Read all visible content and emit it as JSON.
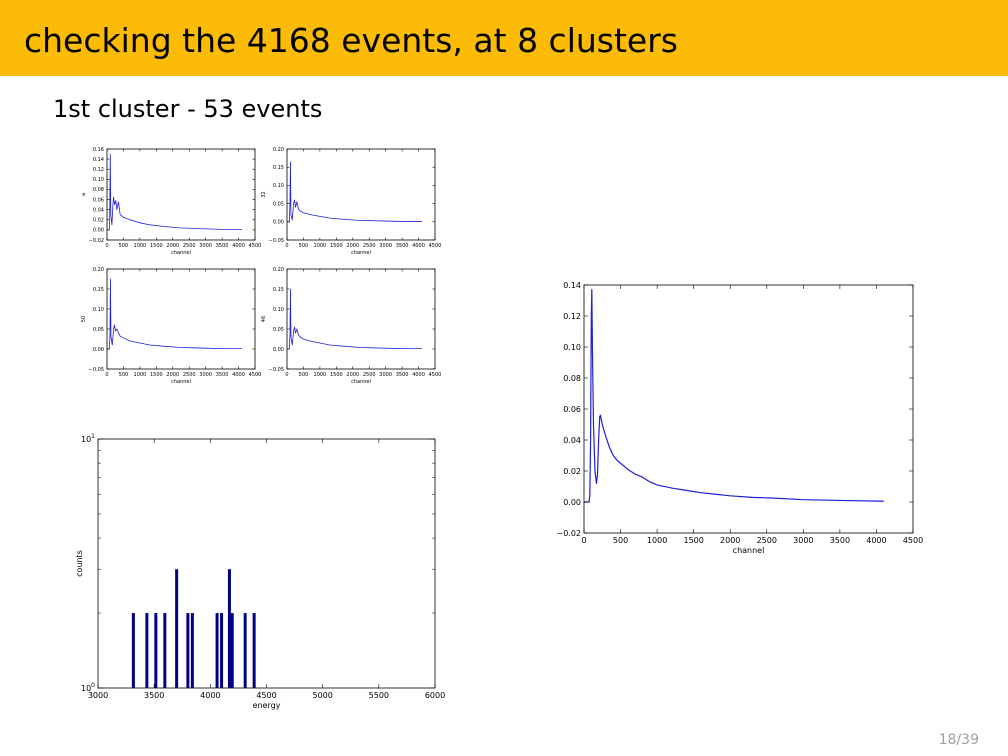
{
  "slide": {
    "title": "checking the 4168 events, at 8 clusters",
    "subtitle": "1st cluster - 53 events",
    "page_number": "18/39"
  },
  "colors": {
    "header_bg": "#fcbb07",
    "trace": "#1f1fd9",
    "histogram_bar": "#000080"
  },
  "chart_data": [
    {
      "id": "small-1",
      "type": "line",
      "xlabel": "channel",
      "ylabel": "a",
      "xlim": [
        0,
        4500
      ],
      "xticks": [
        0,
        500,
        1000,
        1500,
        2000,
        2500,
        3000,
        3500,
        4000,
        4500
      ],
      "ylim": [
        -0.02,
        0.16
      ],
      "yticks": [
        -0.02,
        0.0,
        0.02,
        0.04,
        0.06,
        0.08,
        0.1,
        0.12,
        0.14,
        0.16
      ],
      "tick_decimals": 2,
      "points": [
        [
          0,
          0
        ],
        [
          70,
          0
        ],
        [
          80,
          0.01
        ],
        [
          100,
          0.15
        ],
        [
          115,
          0.03
        ],
        [
          150,
          0.01
        ],
        [
          180,
          0.05
        ],
        [
          200,
          0.065
        ],
        [
          230,
          0.05
        ],
        [
          270,
          0.058
        ],
        [
          300,
          0.04
        ],
        [
          350,
          0.055
        ],
        [
          400,
          0.03
        ],
        [
          500,
          0.025
        ],
        [
          700,
          0.02
        ],
        [
          1000,
          0.014
        ],
        [
          1300,
          0.01
        ],
        [
          1700,
          0.007
        ],
        [
          2200,
          0.004
        ],
        [
          2600,
          0.003
        ],
        [
          3000,
          0.002
        ],
        [
          3500,
          0.001
        ],
        [
          4100,
          0.001
        ]
      ]
    },
    {
      "id": "small-2",
      "type": "line",
      "xlabel": "channel",
      "ylabel": "32",
      "xlim": [
        0,
        4500
      ],
      "xticks": [
        0,
        500,
        1000,
        1500,
        2000,
        2500,
        3000,
        3500,
        4000,
        4500
      ],
      "ylim": [
        -0.05,
        0.2
      ],
      "yticks": [
        -0.05,
        0.0,
        0.05,
        0.1,
        0.15,
        0.2
      ],
      "tick_decimals": 2,
      "points": [
        [
          0,
          0
        ],
        [
          70,
          0
        ],
        [
          90,
          0.05
        ],
        [
          105,
          0.165
        ],
        [
          120,
          0.02
        ],
        [
          160,
          0.005
        ],
        [
          200,
          0.05
        ],
        [
          230,
          0.06
        ],
        [
          260,
          0.04
        ],
        [
          300,
          0.055
        ],
        [
          350,
          0.035
        ],
        [
          400,
          0.03
        ],
        [
          500,
          0.025
        ],
        [
          700,
          0.02
        ],
        [
          1000,
          0.015
        ],
        [
          1300,
          0.01
        ],
        [
          1700,
          0.007
        ],
        [
          2200,
          0.004
        ],
        [
          2600,
          0.003
        ],
        [
          3000,
          0.002
        ],
        [
          3500,
          0.001
        ],
        [
          4100,
          0.001
        ]
      ]
    },
    {
      "id": "small-3",
      "type": "line",
      "xlabel": "channel",
      "ylabel": "50",
      "xlim": [
        0,
        4500
      ],
      "xticks": [
        0,
        500,
        1000,
        1500,
        2000,
        2500,
        3000,
        3500,
        4000,
        4500
      ],
      "ylim": [
        -0.05,
        0.2
      ],
      "yticks": [
        -0.05,
        0.0,
        0.05,
        0.1,
        0.15,
        0.2
      ],
      "tick_decimals": 2,
      "points": [
        [
          0,
          0
        ],
        [
          70,
          0
        ],
        [
          90,
          0.03
        ],
        [
          105,
          0.175
        ],
        [
          120,
          0.03
        ],
        [
          160,
          0.01
        ],
        [
          200,
          0.05
        ],
        [
          230,
          0.06
        ],
        [
          260,
          0.045
        ],
        [
          300,
          0.05
        ],
        [
          350,
          0.04
        ],
        [
          400,
          0.032
        ],
        [
          500,
          0.028
        ],
        [
          700,
          0.02
        ],
        [
          1000,
          0.015
        ],
        [
          1300,
          0.01
        ],
        [
          1700,
          0.007
        ],
        [
          2200,
          0.004
        ],
        [
          2600,
          0.003
        ],
        [
          3000,
          0.002
        ],
        [
          3500,
          0.001
        ],
        [
          4100,
          0.001
        ]
      ]
    },
    {
      "id": "small-4",
      "type": "line",
      "xlabel": "channel",
      "ylabel": "46",
      "xlim": [
        0,
        4500
      ],
      "xticks": [
        0,
        500,
        1000,
        1500,
        2000,
        2500,
        3000,
        3500,
        4000,
        4500
      ],
      "ylim": [
        -0.05,
        0.2
      ],
      "yticks": [
        -0.05,
        0.0,
        0.05,
        0.1,
        0.15,
        0.2
      ],
      "tick_decimals": 2,
      "points": [
        [
          0,
          0
        ],
        [
          70,
          0
        ],
        [
          90,
          0.03
        ],
        [
          105,
          0.15
        ],
        [
          120,
          0.03
        ],
        [
          160,
          0.01
        ],
        [
          200,
          0.045
        ],
        [
          230,
          0.055
        ],
        [
          260,
          0.04
        ],
        [
          300,
          0.05
        ],
        [
          350,
          0.035
        ],
        [
          400,
          0.03
        ],
        [
          500,
          0.025
        ],
        [
          700,
          0.02
        ],
        [
          1000,
          0.015
        ],
        [
          1300,
          0.01
        ],
        [
          1700,
          0.007
        ],
        [
          2200,
          0.004
        ],
        [
          2600,
          0.003
        ],
        [
          3000,
          0.002
        ],
        [
          3500,
          0.001
        ],
        [
          4100,
          0.001
        ]
      ]
    },
    {
      "id": "histogram",
      "type": "bar",
      "yscale": "log",
      "xlabel": "energy",
      "ylabel": "counts",
      "xlim": [
        3000,
        6000
      ],
      "xticks": [
        3000,
        3500,
        4000,
        4500,
        5000,
        5500,
        6000
      ],
      "ylim": [
        1,
        10
      ],
      "ytick_labels": [
        {
          "value": 1,
          "base": "10",
          "exp": "0"
        },
        {
          "value": 10,
          "base": "10",
          "exp": "1"
        }
      ],
      "bars": [
        {
          "x": 3315,
          "count": 2
        },
        {
          "x": 3435,
          "count": 2
        },
        {
          "x": 3515,
          "count": 2
        },
        {
          "x": 3595,
          "count": 2
        },
        {
          "x": 3700,
          "count": 3
        },
        {
          "x": 3800,
          "count": 2
        },
        {
          "x": 3840,
          "count": 2
        },
        {
          "x": 4060,
          "count": 2
        },
        {
          "x": 4100,
          "count": 2
        },
        {
          "x": 4170,
          "count": 3
        },
        {
          "x": 4195,
          "count": 2
        },
        {
          "x": 4310,
          "count": 2
        },
        {
          "x": 4390,
          "count": 2
        }
      ]
    },
    {
      "id": "large",
      "type": "line",
      "xlabel": "channel",
      "ylabel": "",
      "xlim": [
        0,
        4500
      ],
      "xticks": [
        0,
        500,
        1000,
        1500,
        2000,
        2500,
        3000,
        3500,
        4000,
        4500
      ],
      "ylim": [
        -0.02,
        0.14
      ],
      "yticks": [
        -0.02,
        0.0,
        0.02,
        0.04,
        0.06,
        0.08,
        0.1,
        0.12,
        0.14
      ],
      "tick_decimals": 2,
      "points": [
        [
          0,
          0
        ],
        [
          70,
          0
        ],
        [
          80,
          0.005
        ],
        [
          90,
          0.04
        ],
        [
          100,
          0.12
        ],
        [
          107,
          0.137
        ],
        [
          115,
          0.1
        ],
        [
          130,
          0.05
        ],
        [
          150,
          0.02
        ],
        [
          170,
          0.012
        ],
        [
          185,
          0.018
        ],
        [
          200,
          0.04
        ],
        [
          215,
          0.055
        ],
        [
          225,
          0.056
        ],
        [
          250,
          0.05
        ],
        [
          300,
          0.042
        ],
        [
          350,
          0.035
        ],
        [
          400,
          0.03
        ],
        [
          450,
          0.027
        ],
        [
          500,
          0.025
        ],
        [
          600,
          0.021
        ],
        [
          700,
          0.018
        ],
        [
          800,
          0.016
        ],
        [
          900,
          0.013
        ],
        [
          1000,
          0.011
        ],
        [
          1200,
          0.009
        ],
        [
          1400,
          0.0075
        ],
        [
          1600,
          0.006
        ],
        [
          1800,
          0.005
        ],
        [
          2000,
          0.004
        ],
        [
          2300,
          0.003
        ],
        [
          2600,
          0.0025
        ],
        [
          3000,
          0.0015
        ],
        [
          3500,
          0.001
        ],
        [
          4100,
          0.0005
        ]
      ]
    }
  ]
}
